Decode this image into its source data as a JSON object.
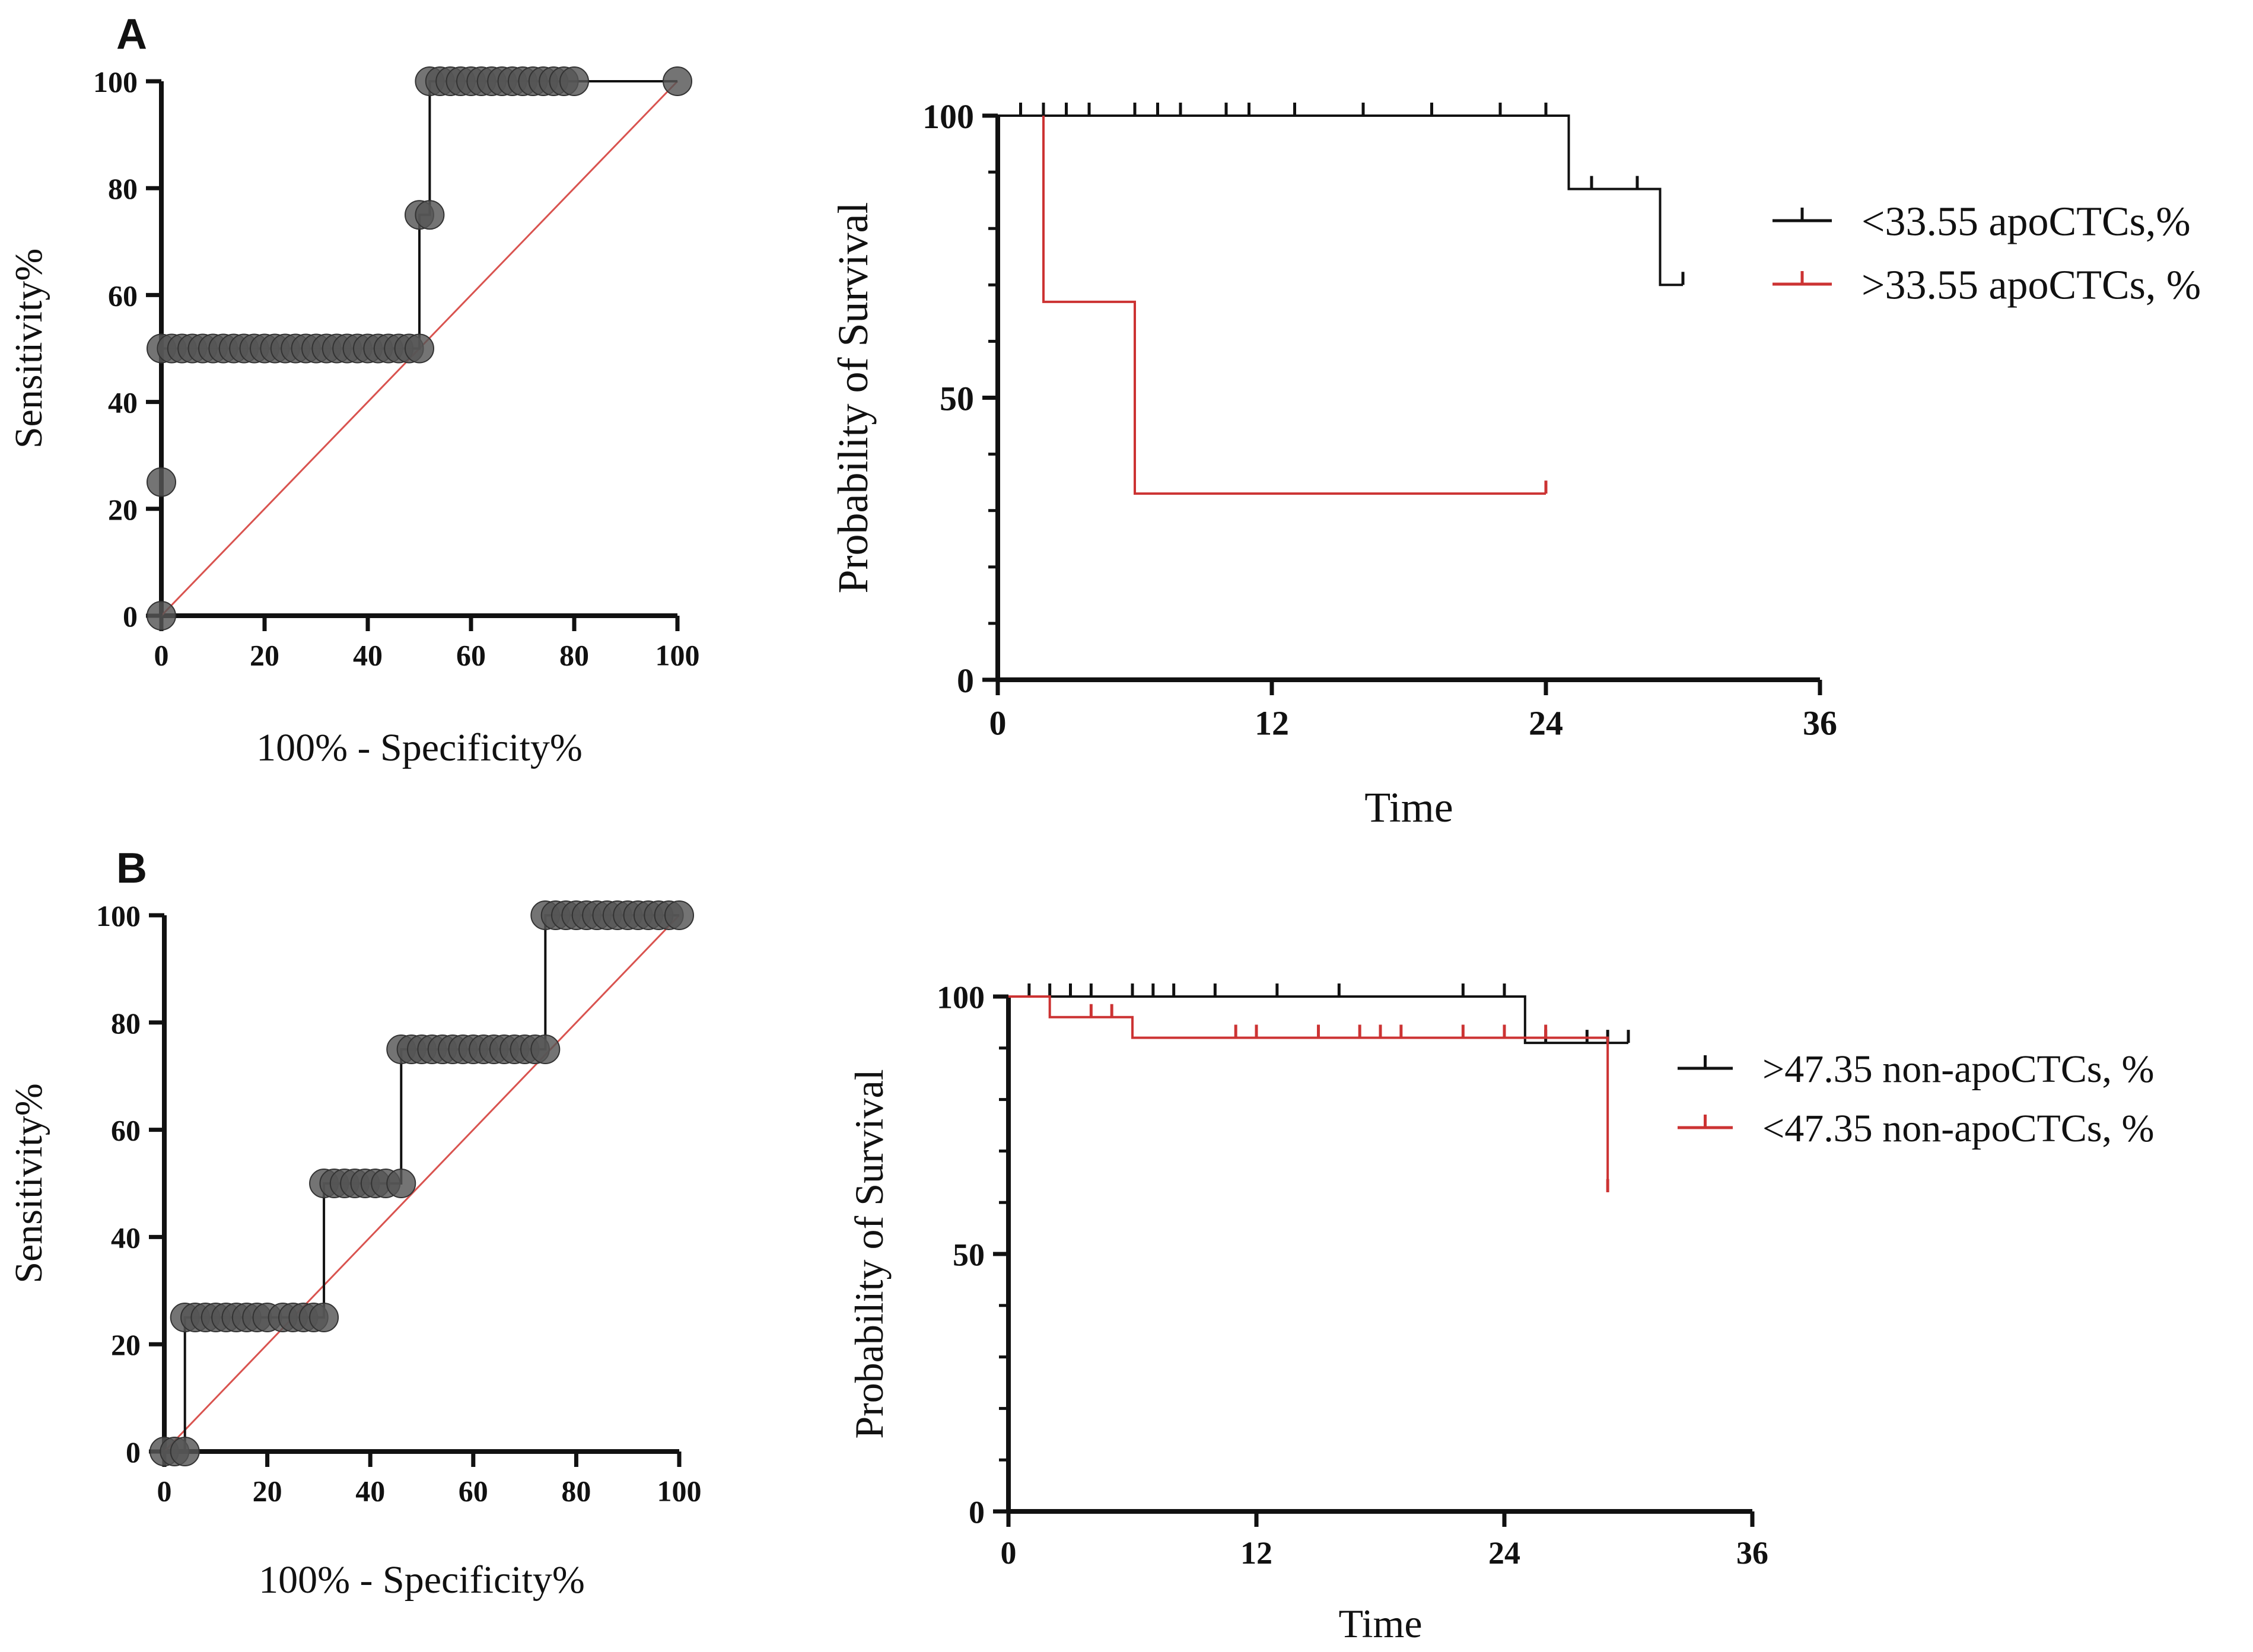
{
  "chart_data": [
    {
      "id": "roc_a",
      "panel_label": "A",
      "type": "line",
      "subtype": "roc",
      "xlabel": "100% - Specificity%",
      "ylabel": "Sensitivity%",
      "xlim": [
        0,
        100
      ],
      "ylim": [
        0,
        100
      ],
      "x_ticks": [
        0,
        20,
        40,
        60,
        80,
        100
      ],
      "y_ticks": [
        0,
        20,
        40,
        60,
        80,
        100
      ],
      "roc_curve": [
        [
          0,
          0
        ],
        [
          0,
          25
        ],
        [
          0,
          50
        ],
        [
          50,
          50
        ],
        [
          50,
          75
        ],
        [
          52,
          75
        ],
        [
          52,
          100
        ],
        [
          100,
          100
        ]
      ],
      "points": [
        [
          0,
          0
        ],
        [
          0,
          25
        ],
        [
          0,
          50
        ],
        [
          2,
          50
        ],
        [
          4,
          50
        ],
        [
          6,
          50
        ],
        [
          8,
          50
        ],
        [
          10,
          50
        ],
        [
          12,
          50
        ],
        [
          14,
          50
        ],
        [
          16,
          50
        ],
        [
          18,
          50
        ],
        [
          20,
          50
        ],
        [
          22,
          50
        ],
        [
          24,
          50
        ],
        [
          26,
          50
        ],
        [
          28,
          50
        ],
        [
          30,
          50
        ],
        [
          32,
          50
        ],
        [
          34,
          50
        ],
        [
          36,
          50
        ],
        [
          38,
          50
        ],
        [
          40,
          50
        ],
        [
          42,
          50
        ],
        [
          44,
          50
        ],
        [
          46,
          50
        ],
        [
          48,
          50
        ],
        [
          50,
          50
        ],
        [
          50,
          75
        ],
        [
          52,
          75
        ],
        [
          52,
          100
        ],
        [
          54,
          100
        ],
        [
          56,
          100
        ],
        [
          58,
          100
        ],
        [
          60,
          100
        ],
        [
          62,
          100
        ],
        [
          64,
          100
        ],
        [
          66,
          100
        ],
        [
          68,
          100
        ],
        [
          70,
          100
        ],
        [
          72,
          100
        ],
        [
          74,
          100
        ],
        [
          76,
          100
        ],
        [
          78,
          100
        ],
        [
          80,
          100
        ],
        [
          100,
          100
        ]
      ],
      "reference_line": [
        [
          0,
          0
        ],
        [
          100,
          100
        ]
      ],
      "colors": {
        "curve": "#111111",
        "points": "#555555",
        "reference": "#d9534f"
      }
    },
    {
      "id": "km_a",
      "type": "line",
      "subtype": "kaplan-meier",
      "xlabel": "Time",
      "ylabel": "Probability of Survival",
      "xlim": [
        0,
        36
      ],
      "ylim": [
        0,
        100
      ],
      "x_ticks": [
        0,
        12,
        24,
        36
      ],
      "y_ticks": [
        0,
        50,
        100
      ],
      "legend_position": "right",
      "series": [
        {
          "name": "<33.55 apoCTCs,%",
          "color": "#111111",
          "steps": [
            [
              0,
              100
            ],
            [
              25,
              100
            ],
            [
              25,
              87
            ],
            [
              29,
              87
            ],
            [
              29,
              70
            ],
            [
              30,
              70
            ]
          ],
          "censor": [
            [
              1,
              100
            ],
            [
              2,
              100
            ],
            [
              3,
              100
            ],
            [
              4,
              100
            ],
            [
              6,
              100
            ],
            [
              7,
              100
            ],
            [
              8,
              100
            ],
            [
              10,
              100
            ],
            [
              11,
              100
            ],
            [
              13,
              100
            ],
            [
              16,
              100
            ],
            [
              19,
              100
            ],
            [
              22,
              100
            ],
            [
              24,
              100
            ],
            [
              26,
              87
            ],
            [
              28,
              87
            ],
            [
              30,
              70
            ]
          ]
        },
        {
          "name": ">33.55 apoCTCs, %",
          "color": "#cc3333",
          "steps": [
            [
              2,
              100
            ],
            [
              2,
              67
            ],
            [
              6,
              67
            ],
            [
              6,
              33
            ],
            [
              24,
              33
            ]
          ],
          "censor": [
            [
              24,
              33
            ]
          ]
        }
      ]
    },
    {
      "id": "roc_b",
      "panel_label": "B",
      "type": "line",
      "subtype": "roc",
      "xlabel": "100% - Specificity%",
      "ylabel": "Sensitivity%",
      "xlim": [
        0,
        100
      ],
      "ylim": [
        0,
        100
      ],
      "x_ticks": [
        0,
        20,
        40,
        60,
        80,
        100
      ],
      "y_ticks": [
        0,
        20,
        40,
        60,
        80,
        100
      ],
      "roc_curve": [
        [
          0,
          0
        ],
        [
          4,
          0
        ],
        [
          4,
          25
        ],
        [
          31,
          25
        ],
        [
          31,
          50
        ],
        [
          46,
          50
        ],
        [
          46,
          75
        ],
        [
          74,
          75
        ],
        [
          74,
          100
        ],
        [
          100,
          100
        ]
      ],
      "points": [
        [
          0,
          0
        ],
        [
          2,
          0
        ],
        [
          4,
          0
        ],
        [
          4,
          25
        ],
        [
          6,
          25
        ],
        [
          8,
          25
        ],
        [
          10,
          25
        ],
        [
          12,
          25
        ],
        [
          14,
          25
        ],
        [
          16,
          25
        ],
        [
          18,
          25
        ],
        [
          20,
          25
        ],
        [
          23,
          25
        ],
        [
          25,
          25
        ],
        [
          27,
          25
        ],
        [
          29,
          25
        ],
        [
          31,
          25
        ],
        [
          31,
          50
        ],
        [
          33,
          50
        ],
        [
          35,
          50
        ],
        [
          37,
          50
        ],
        [
          39,
          50
        ],
        [
          41,
          50
        ],
        [
          43,
          50
        ],
        [
          46,
          50
        ],
        [
          46,
          75
        ],
        [
          48,
          75
        ],
        [
          50,
          75
        ],
        [
          52,
          75
        ],
        [
          54,
          75
        ],
        [
          56,
          75
        ],
        [
          58,
          75
        ],
        [
          60,
          75
        ],
        [
          62,
          75
        ],
        [
          64,
          75
        ],
        [
          66,
          75
        ],
        [
          68,
          75
        ],
        [
          70,
          75
        ],
        [
          72,
          75
        ],
        [
          74,
          75
        ],
        [
          74,
          100
        ],
        [
          76,
          100
        ],
        [
          78,
          100
        ],
        [
          80,
          100
        ],
        [
          82,
          100
        ],
        [
          84,
          100
        ],
        [
          86,
          100
        ],
        [
          88,
          100
        ],
        [
          90,
          100
        ],
        [
          92,
          100
        ],
        [
          94,
          100
        ],
        [
          96,
          100
        ],
        [
          98,
          100
        ],
        [
          100,
          100
        ]
      ],
      "reference_line": [
        [
          0,
          0
        ],
        [
          100,
          100
        ]
      ],
      "colors": {
        "curve": "#111111",
        "points": "#555555",
        "reference": "#d9534f"
      }
    },
    {
      "id": "km_b",
      "type": "line",
      "subtype": "kaplan-meier",
      "xlabel": "Time",
      "ylabel": "Probability of Survival",
      "xlim": [
        0,
        36
      ],
      "ylim": [
        0,
        100
      ],
      "x_ticks": [
        0,
        12,
        24,
        36
      ],
      "y_ticks": [
        0,
        50,
        100
      ],
      "legend_position": "right",
      "series": [
        {
          "name": ">47.35 non-apoCTCs, %",
          "color": "#111111",
          "steps": [
            [
              0,
              100
            ],
            [
              25,
              100
            ],
            [
              25,
              91
            ],
            [
              30,
              91
            ]
          ],
          "censor": [
            [
              1,
              100
            ],
            [
              2,
              100
            ],
            [
              3,
              100
            ],
            [
              4,
              100
            ],
            [
              6,
              100
            ],
            [
              7,
              100
            ],
            [
              8,
              100
            ],
            [
              10,
              100
            ],
            [
              13,
              100
            ],
            [
              16,
              100
            ],
            [
              22,
              100
            ],
            [
              24,
              100
            ],
            [
              26,
              91
            ],
            [
              28,
              91
            ],
            [
              29,
              91
            ],
            [
              30,
              91
            ]
          ]
        },
        {
          "name": "<47.35 non-apoCTCs, %",
          "color": "#cc3333",
          "steps": [
            [
              0,
              100
            ],
            [
              2,
              100
            ],
            [
              2,
              96
            ],
            [
              6,
              96
            ],
            [
              6,
              92
            ],
            [
              29,
              92
            ],
            [
              29,
              62
            ]
          ],
          "censor": [
            [
              4,
              96
            ],
            [
              5,
              96
            ],
            [
              11,
              92
            ],
            [
              12,
              92
            ],
            [
              15,
              92
            ],
            [
              17,
              92
            ],
            [
              18,
              92
            ],
            [
              19,
              92
            ],
            [
              22,
              92
            ],
            [
              24,
              92
            ],
            [
              26,
              92
            ],
            [
              29,
              62
            ]
          ]
        }
      ]
    }
  ]
}
